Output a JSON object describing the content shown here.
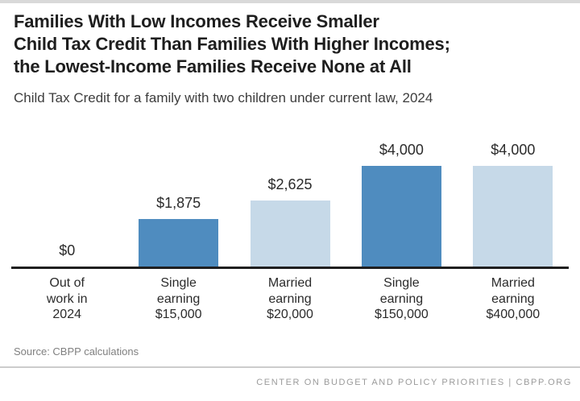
{
  "header": {
    "title_lines": [
      "Families With Low Incomes Receive Smaller",
      "Child Tax Credit Than Families With Higher Incomes;",
      "the Lowest-Income Families Receive None at All"
    ],
    "subtitle": "Child Tax Credit for a family with two children under current law, 2024"
  },
  "chart_data": {
    "type": "bar",
    "title": "Families With Low Incomes Receive Smaller Child Tax Credit Than Families With Higher Incomes; the Lowest-Income Families Receive None at All",
    "subtitle": "Child Tax Credit for a family with two children under current law, 2024",
    "categories": [
      "Out of\nwork in\n2024",
      "Single\nearning\n$15,000",
      "Married\nearning\n$20,000",
      "Single\nearning\n$150,000",
      "Married\nearning\n$400,000"
    ],
    "values": [
      0,
      1875,
      2625,
      4000,
      4000
    ],
    "value_labels": [
      "$0",
      "$1,875",
      "$2,625",
      "$4,000",
      "$4,000"
    ],
    "bar_colors": [
      "#4f8cbf",
      "#4f8cbf",
      "#c6d9e8",
      "#4f8cbf",
      "#c6d9e8"
    ],
    "xlabel": "",
    "ylabel": "",
    "ylim": [
      0,
      4000
    ],
    "grid": false,
    "legend": false
  },
  "colors": {
    "dark_blue": "#4f8cbf",
    "light_blue": "#c6d9e8",
    "axis_line": "#1f1f1f",
    "top_accent": "#d9d9d9"
  },
  "footer": {
    "source": "Source: CBPP calculations",
    "credit": "CENTER ON BUDGET AND POLICY PRIORITIES | CBPP.ORG"
  }
}
